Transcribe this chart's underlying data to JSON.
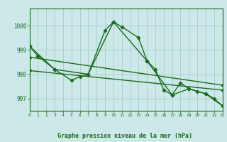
{
  "bg_color": "#cce8e8",
  "grid_color": "#aacccc",
  "line_color": "#1a6b1a",
  "title": "Graphe pression niveau de la mer (hPa)",
  "xlim": [
    0,
    23
  ],
  "ylim": [
    996.5,
    1000.7
  ],
  "yticks": [
    997,
    998,
    999,
    1000
  ],
  "xtick_labels": [
    "0",
    "1",
    "2",
    "3",
    "4",
    "5",
    "6",
    "7",
    "8",
    "9",
    "10",
    "11",
    "12",
    "13",
    "14",
    "15",
    "16",
    "17",
    "18",
    "19",
    "20",
    "21",
    "22",
    "23"
  ],
  "series2_x": [
    0,
    1,
    3,
    5,
    6,
    7,
    9,
    10,
    11,
    13,
    14,
    15,
    16,
    17,
    18,
    19,
    20,
    21,
    22,
    23
  ],
  "series2_y": [
    999.15,
    998.75,
    998.2,
    997.75,
    997.9,
    998.0,
    999.8,
    1000.15,
    999.95,
    999.5,
    998.55,
    998.2,
    997.35,
    997.15,
    997.65,
    997.4,
    997.3,
    997.2,
    997.0,
    996.7
  ],
  "series3_x": [
    0,
    3,
    7,
    10,
    14,
    17,
    19,
    21,
    23
  ],
  "series3_y": [
    999.15,
    998.2,
    998.0,
    1000.15,
    998.55,
    997.15,
    997.4,
    997.2,
    996.7
  ],
  "series4_x": [
    0,
    23
  ],
  "series4_y": [
    998.7,
    997.55
  ],
  "series5_x": [
    0,
    23
  ],
  "series5_y": [
    998.15,
    997.35
  ],
  "marker_size": 2.8,
  "line_width": 1.0
}
